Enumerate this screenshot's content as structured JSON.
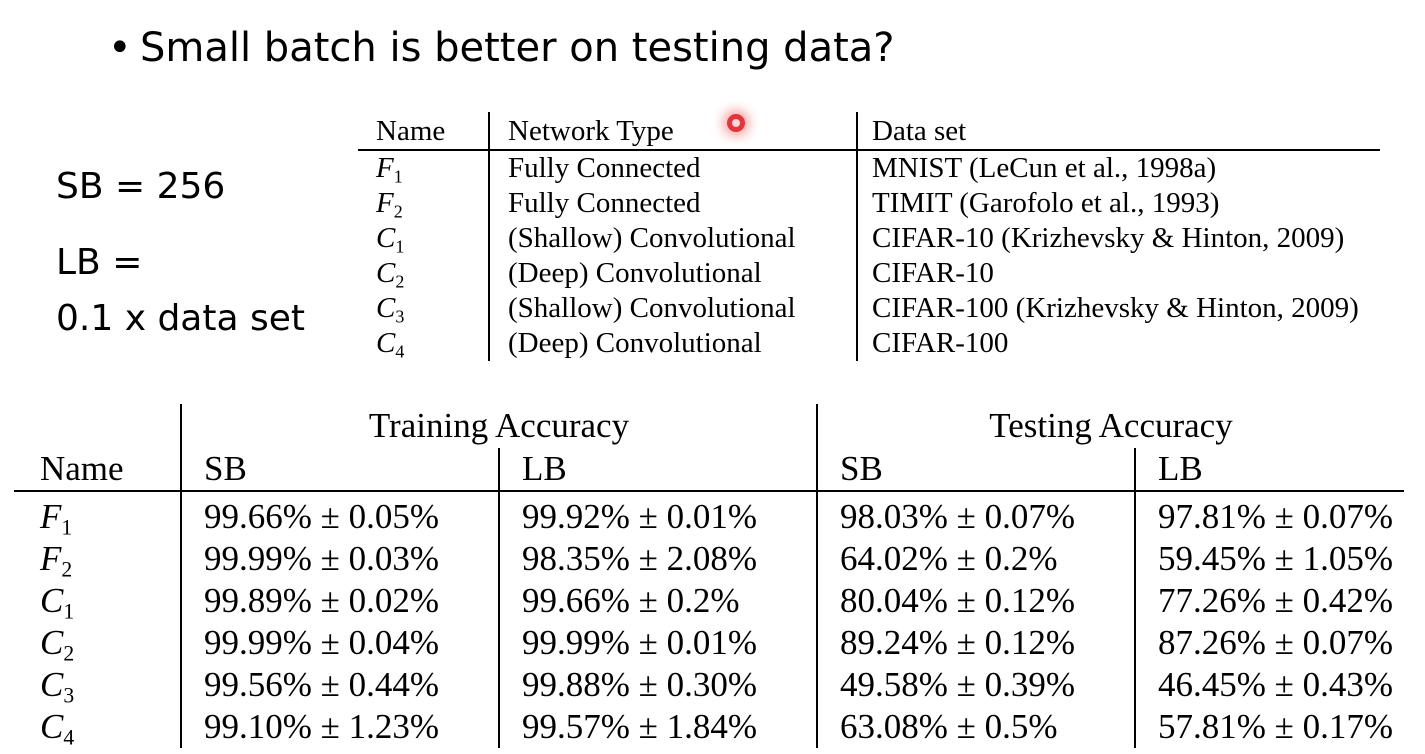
{
  "slide": {
    "bullet": "•",
    "title": "Small batch is better on testing data?",
    "sb_note": "SB = 256",
    "lb_note_line1": "LB =",
    "lb_note_line2": "0.1 x data set"
  },
  "network_table": {
    "headers": [
      "Name",
      "Network Type",
      "Data set"
    ],
    "rows": [
      {
        "name": "F",
        "sub": "1",
        "type": "Fully Connected",
        "dataset": "MNIST (LeCun et al., 1998a)"
      },
      {
        "name": "F",
        "sub": "2",
        "type": "Fully Connected",
        "dataset": "TIMIT (Garofolo et al., 1993)"
      },
      {
        "name": "C",
        "sub": "1",
        "type": "(Shallow) Convolutional",
        "dataset": "CIFAR-10 (Krizhevsky & Hinton, 2009)"
      },
      {
        "name": "C",
        "sub": "2",
        "type": "(Deep) Convolutional",
        "dataset": "CIFAR-10"
      },
      {
        "name": "C",
        "sub": "3",
        "type": "(Shallow) Convolutional",
        "dataset": "CIFAR-100 (Krizhevsky & Hinton, 2009)"
      },
      {
        "name": "C",
        "sub": "4",
        "type": "(Deep) Convolutional",
        "dataset": "CIFAR-100"
      }
    ]
  },
  "results_table": {
    "group_training": "Training Accuracy",
    "group_testing": "Testing Accuracy",
    "col_name": "Name",
    "col_sb": "SB",
    "col_lb": "LB",
    "rows": [
      {
        "name": "F",
        "sub": "1",
        "train_sb": "99.66% ± 0.05%",
        "train_lb": "99.92% ± 0.01%",
        "test_sb": "98.03% ± 0.07%",
        "test_lb": "97.81% ± 0.07%"
      },
      {
        "name": "F",
        "sub": "2",
        "train_sb": "99.99% ± 0.03%",
        "train_lb": "98.35% ± 2.08%",
        "test_sb": "64.02% ± 0.2%",
        "test_lb": "59.45% ± 1.05%"
      },
      {
        "name": "C",
        "sub": "1",
        "train_sb": "99.89% ± 0.02%",
        "train_lb": "99.66% ± 0.2%",
        "test_sb": "80.04% ± 0.12%",
        "test_lb": "77.26% ± 0.42%"
      },
      {
        "name": "C",
        "sub": "2",
        "train_sb": "99.99% ± 0.04%",
        "train_lb": "99.99% ± 0.01%",
        "test_sb": "89.24% ± 0.12%",
        "test_lb": "87.26% ± 0.07%"
      },
      {
        "name": "C",
        "sub": "3",
        "train_sb": "99.56% ± 0.44%",
        "train_lb": "99.88% ± 0.30%",
        "test_sb": "49.58% ± 0.39%",
        "test_lb": "46.45% ± 0.43%"
      },
      {
        "name": "C",
        "sub": "4",
        "train_sb": "99.10% ± 1.23%",
        "train_lb": "99.57% ± 1.84%",
        "test_sb": "63.08% ± 0.5%",
        "test_lb": "57.81% ± 0.17%"
      }
    ]
  }
}
